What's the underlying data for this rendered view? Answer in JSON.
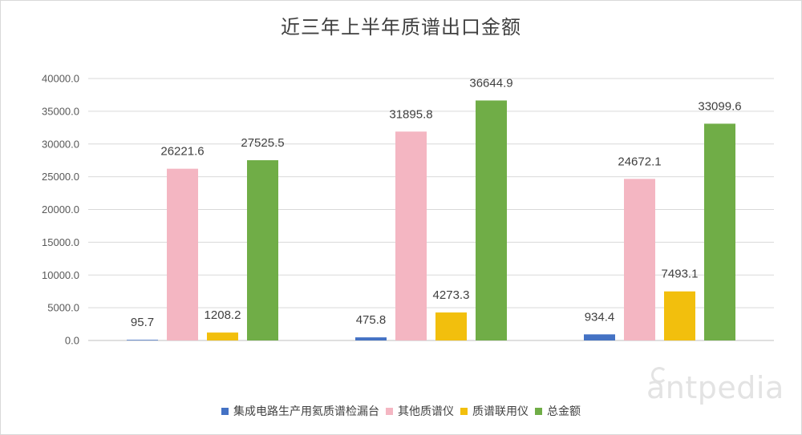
{
  "chart_data": {
    "type": "bar",
    "title": "近三年上半年质谱出口金额",
    "categories": [
      "",
      "",
      ""
    ],
    "series": [
      {
        "name": "集成电路生产用氦质谱检漏台",
        "color": "#4472c4",
        "values": [
          95.7,
          475.8,
          934.4
        ],
        "labels": [
          "95.7",
          "475.8",
          "934.4"
        ]
      },
      {
        "name": "其他质谱仪",
        "color": "#f4b6c2",
        "values": [
          26221.6,
          31895.8,
          24672.1
        ],
        "labels": [
          "26221.6",
          "31895.8",
          "24672.1"
        ]
      },
      {
        "name": "质谱联用仪",
        "color": "#f2bf0d",
        "values": [
          1208.2,
          4273.3,
          7493.1
        ],
        "labels": [
          "1208.2",
          "4273.3",
          "7493.1"
        ]
      },
      {
        "name": "总金额",
        "color": "#70ad47",
        "values": [
          27525.5,
          36644.9,
          33099.6
        ],
        "labels": [
          "27525.5",
          "36644.9",
          "33099.6"
        ]
      }
    ],
    "ylim": [
      0,
      40000
    ],
    "yticks": [
      "0.0",
      "5000.0",
      "10000.0",
      "15000.0",
      "20000.0",
      "25000.0",
      "30000.0",
      "35000.0",
      "40000.0"
    ],
    "grid": true,
    "legend_position": "bottom",
    "xlabel": "",
    "ylabel": ""
  },
  "watermark": "antpedia"
}
